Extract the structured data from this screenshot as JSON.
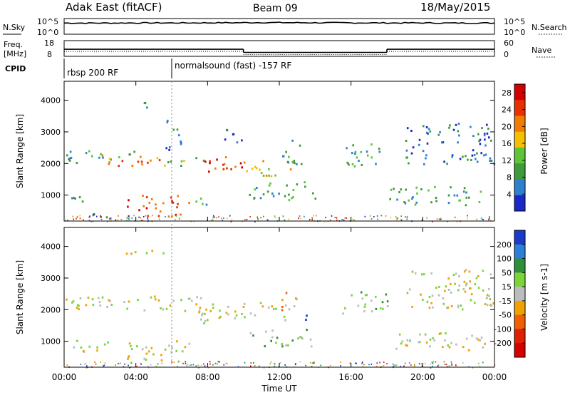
{
  "header": {
    "station": "Adak East (fitACF)",
    "beam": "Beam 09",
    "date": "18/May/2015"
  },
  "side_labels": {
    "nsky": "N.Sky",
    "freq_line1": "Freq.",
    "freq_line2": "[MHz]",
    "cpid": "CPID",
    "nsearch": "N.Search",
    "nave": "Nave"
  },
  "annotations": {
    "cpid_1": "rbsp 200 RF",
    "cpid_2": "normalsound (fast) -157 RF"
  },
  "strip_ticks": {
    "nsky_left": [
      "10^5",
      "10^0"
    ],
    "nsky_right": [
      "10^5",
      "10^0"
    ],
    "freq_left": [
      "18",
      "8"
    ],
    "nave_right": [
      "60",
      "0"
    ]
  },
  "colors": {
    "power_scale": [
      "#1a28c8",
      "#2f7fd0",
      "#3f9a3a",
      "#5ec43a",
      "#f5c000",
      "#f07d00",
      "#e83000",
      "#d40000"
    ],
    "velocity_scale": [
      "#1a3ac8",
      "#2a7fd8",
      "#2f8f3a",
      "#7ad43a",
      "#bcbcbc",
      "#f0a000",
      "#f06000",
      "#e02000",
      "#d40000"
    ],
    "gray_scatter": "#bcbcbc"
  },
  "chart_data": [
    {
      "type": "line",
      "name": "N.Sky strip",
      "x": [
        "00:00",
        "02:00",
        "04:00",
        "06:00",
        "08:00",
        "10:00",
        "11:00",
        "12:00",
        "14:00",
        "16:00",
        "18:00",
        "20:00",
        "22:00",
        "24:00"
      ],
      "y": [
        1000,
        1000,
        1100,
        1100,
        1200,
        1400,
        1600,
        1500,
        1300,
        1200,
        1100,
        1100,
        1000,
        1000
      ],
      "yscale": "log",
      "ylim_ticks": [
        "10^0",
        "10^5"
      ]
    },
    {
      "type": "line",
      "name": "Frequency strip",
      "ylabel": "Freq. [MHz]",
      "segments": [
        {
          "from": "00:00",
          "to": "10:00",
          "value": 12.5
        },
        {
          "from": "10:00",
          "to": "18:00",
          "value": 10.5
        },
        {
          "from": "18:00",
          "to": "24:00",
          "value": 12.5
        }
      ],
      "ylim": [
        8,
        18
      ]
    },
    {
      "type": "heatmap",
      "name": "Power",
      "xlabel": "",
      "ylabel": "Slant Range [km]",
      "x_ticks": [
        "00:00",
        "04:00",
        "08:00",
        "12:00",
        "16:00",
        "20:00",
        "00:00"
      ],
      "y_ticks": [
        1000,
        2000,
        3000,
        4000
      ],
      "ylim": [
        180,
        4600
      ],
      "colorbar": {
        "label": "Power [dB]",
        "ticks": [
          4,
          8,
          12,
          16,
          20,
          24,
          28
        ],
        "range": [
          0,
          30
        ]
      },
      "regions": [
        {
          "t0": 0.0,
          "t1": 4.0,
          "r0": 2050,
          "r1": 2450,
          "level": 2
        },
        {
          "t0": 1.8,
          "t1": 5.6,
          "r0": 1950,
          "r1": 2300,
          "level": 5
        },
        {
          "t0": 5.5,
          "t1": 8.0,
          "r0": 1950,
          "r1": 2250,
          "level": 3
        },
        {
          "t0": 7.5,
          "t1": 10.0,
          "r0": 1700,
          "r1": 2250,
          "level": 6
        },
        {
          "t0": 10.0,
          "t1": 12.8,
          "r0": 1600,
          "r1": 2150,
          "level": 4
        },
        {
          "t0": 12.0,
          "t1": 13.3,
          "r0": 2000,
          "r1": 2800,
          "level": 2
        },
        {
          "t0": 0.0,
          "t1": 1.6,
          "r0": 700,
          "r1": 1000,
          "level": 2
        },
        {
          "t0": 1.5,
          "t1": 2.7,
          "r0": 250,
          "r1": 650,
          "level": 1
        },
        {
          "t0": 3.5,
          "t1": 7.0,
          "r0": 350,
          "r1": 1050,
          "level": 6
        },
        {
          "t0": 7.0,
          "t1": 8.0,
          "r0": 650,
          "r1": 1000,
          "level": 2
        },
        {
          "t0": 10.3,
          "t1": 14.0,
          "r0": 850,
          "r1": 1450,
          "level": 2
        },
        {
          "t0": 3.3,
          "t1": 4.6,
          "r0": 3800,
          "r1": 4000,
          "level": 2
        },
        {
          "t0": 15.5,
          "t1": 18.0,
          "r0": 1900,
          "r1": 2650,
          "level": 2
        },
        {
          "t0": 18.0,
          "t1": 23.5,
          "r0": 700,
          "r1": 1300,
          "level": 2
        },
        {
          "t0": 19.0,
          "t1": 24.0,
          "r0": 2000,
          "r1": 3300,
          "level": 1
        },
        {
          "t0": 5.5,
          "t1": 6.5,
          "r0": 2400,
          "r1": 3400,
          "level": 1
        },
        {
          "t0": 8.8,
          "t1": 10.0,
          "r0": 2700,
          "r1": 3200,
          "level": 1
        }
      ]
    },
    {
      "type": "heatmap",
      "name": "Velocity",
      "xlabel": "Time UT",
      "ylabel": "Slant Range [km]",
      "x_ticks": [
        "00:00",
        "04:00",
        "08:00",
        "12:00",
        "16:00",
        "20:00",
        "00:00"
      ],
      "y_ticks": [
        1000,
        2000,
        3000,
        4000
      ],
      "ylim": [
        180,
        4600
      ],
      "colorbar": {
        "label": "Velocity [m s-1]",
        "ticks": [
          200,
          100,
          50,
          15,
          -15,
          -50,
          -100,
          -200
        ],
        "range": [
          -250,
          250
        ]
      },
      "regions": [
        {
          "t0": 0.0,
          "t1": 8.0,
          "r0": 1950,
          "r1": 2450,
          "level": 4
        },
        {
          "t0": 7.5,
          "t1": 12.5,
          "r0": 1600,
          "r1": 2250,
          "level": 4
        },
        {
          "t0": 0.0,
          "t1": 2.5,
          "r0": 700,
          "r1": 1050,
          "level": 4
        },
        {
          "t0": 3.5,
          "t1": 7.0,
          "r0": 350,
          "r1": 1050,
          "level": 4
        },
        {
          "t0": 10.3,
          "t1": 13.8,
          "r0": 850,
          "r1": 1400,
          "level": 3
        },
        {
          "t0": 12.6,
          "t1": 13.5,
          "r0": 1650,
          "r1": 1850,
          "level": 0
        },
        {
          "t0": 12.0,
          "t1": 13.0,
          "r0": 2000,
          "r1": 2700,
          "level": 5
        },
        {
          "t0": 15.5,
          "t1": 18.0,
          "r0": 1900,
          "r1": 2650,
          "level": 3
        },
        {
          "t0": 18.0,
          "t1": 23.5,
          "r0": 700,
          "r1": 1300,
          "level": 4
        },
        {
          "t0": 19.0,
          "t1": 24.0,
          "r0": 2000,
          "r1": 3300,
          "level": 4
        },
        {
          "t0": 3.3,
          "t1": 5.8,
          "r0": 3800,
          "r1": 4000,
          "level": 4
        }
      ]
    }
  ]
}
